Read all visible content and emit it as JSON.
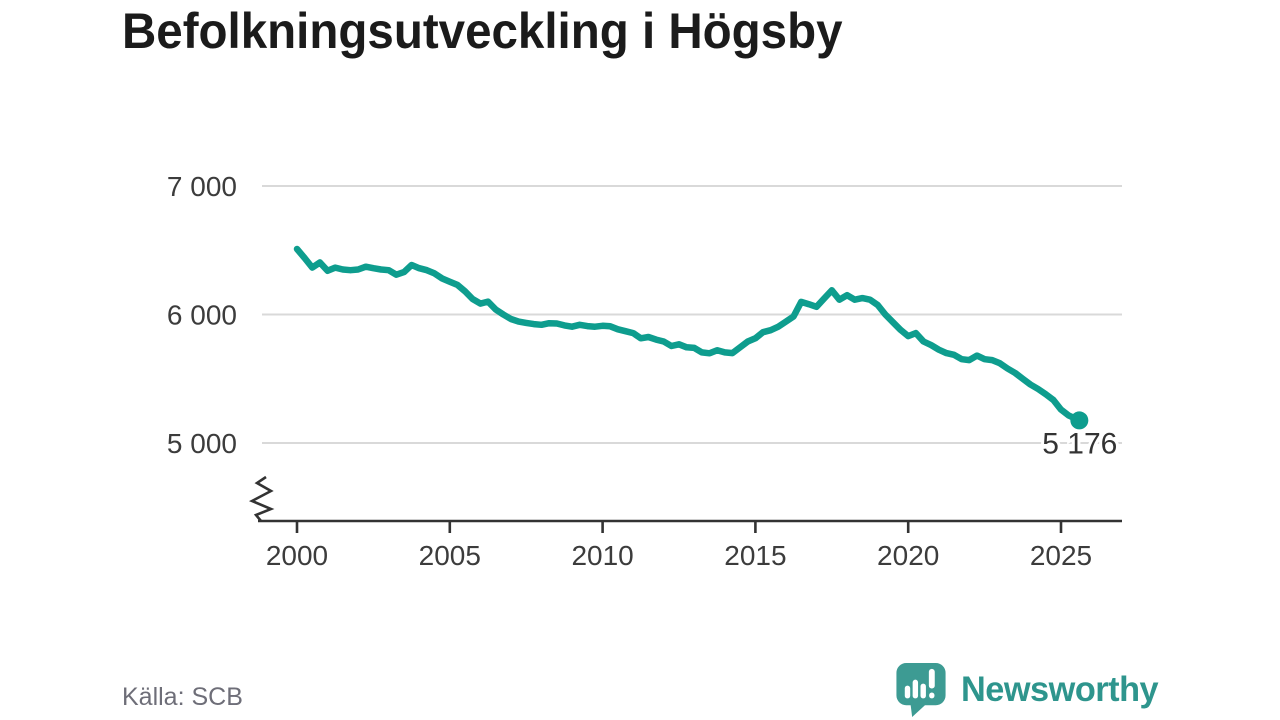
{
  "title": "Befolkningsutveckling i Högsby",
  "source": "Källa: SCB",
  "footer_logo": {
    "brand": "Newsworthy",
    "icon": "newsworthy-speech-bubble-chart-icon"
  },
  "colors": {
    "line": "#0e9d8e",
    "end_dot": "#0e9d8e",
    "grid": "#d9d9d9",
    "axis": "#333333",
    "tick_text": "#3c3c3c",
    "title_text": "#1b1b1b",
    "source_text": "#6e6e78",
    "brand_teal": "#2e958d",
    "icon_teal": "#3d9b93",
    "end_label_text": "#333333"
  },
  "chart_data": {
    "type": "line",
    "title": "Befolkningsutveckling i Högsby",
    "xlabel": "",
    "ylabel": "",
    "grid": "horizontal",
    "legend": "none",
    "axis_break": true,
    "xlim": [
      1998.9,
      2026.9
    ],
    "ylim_displayed": [
      5000,
      7000
    ],
    "x_ticks": [
      {
        "value": 2000,
        "label": "2000"
      },
      {
        "value": 2005,
        "label": "2005"
      },
      {
        "value": 2010,
        "label": "2010"
      },
      {
        "value": 2015,
        "label": "2015"
      },
      {
        "value": 2020,
        "label": "2020"
      },
      {
        "value": 2025,
        "label": "2025"
      }
    ],
    "y_ticks": [
      {
        "value": 7000,
        "label": "7 000"
      },
      {
        "value": 6000,
        "label": "6 000"
      },
      {
        "value": 5000,
        "label": "5 000"
      }
    ],
    "end_label": "5 176",
    "last_value": 5176,
    "series": [
      {
        "name": "Befolkning i Högsby (kvartal)",
        "points": [
          [
            2000.0,
            6510
          ],
          [
            2000.25,
            6440
          ],
          [
            2000.5,
            6365
          ],
          [
            2000.75,
            6405
          ],
          [
            2001.0,
            6340
          ],
          [
            2001.25,
            6365
          ],
          [
            2001.5,
            6350
          ],
          [
            2001.75,
            6345
          ],
          [
            2002.0,
            6350
          ],
          [
            2002.25,
            6372
          ],
          [
            2002.5,
            6360
          ],
          [
            2002.75,
            6350
          ],
          [
            2003.0,
            6345
          ],
          [
            2003.25,
            6310
          ],
          [
            2003.5,
            6330
          ],
          [
            2003.75,
            6385
          ],
          [
            2004.0,
            6360
          ],
          [
            2004.25,
            6345
          ],
          [
            2004.5,
            6320
          ],
          [
            2004.75,
            6280
          ],
          [
            2005.0,
            6255
          ],
          [
            2005.25,
            6230
          ],
          [
            2005.5,
            6180
          ],
          [
            2005.75,
            6120
          ],
          [
            2006.0,
            6085
          ],
          [
            2006.25,
            6100
          ],
          [
            2006.5,
            6040
          ],
          [
            2006.75,
            6000
          ],
          [
            2007.0,
            5965
          ],
          [
            2007.25,
            5945
          ],
          [
            2007.5,
            5935
          ],
          [
            2007.75,
            5925
          ],
          [
            2008.0,
            5920
          ],
          [
            2008.25,
            5932
          ],
          [
            2008.5,
            5930
          ],
          [
            2008.75,
            5915
          ],
          [
            2009.0,
            5905
          ],
          [
            2009.25,
            5920
          ],
          [
            2009.5,
            5910
          ],
          [
            2009.75,
            5905
          ],
          [
            2010.0,
            5912
          ],
          [
            2010.25,
            5908
          ],
          [
            2010.5,
            5885
          ],
          [
            2010.75,
            5870
          ],
          [
            2011.0,
            5855
          ],
          [
            2011.25,
            5815
          ],
          [
            2011.5,
            5825
          ],
          [
            2011.75,
            5805
          ],
          [
            2012.0,
            5790
          ],
          [
            2012.25,
            5755
          ],
          [
            2012.5,
            5768
          ],
          [
            2012.75,
            5745
          ],
          [
            2013.0,
            5740
          ],
          [
            2013.25,
            5705
          ],
          [
            2013.5,
            5698
          ],
          [
            2013.75,
            5722
          ],
          [
            2014.0,
            5705
          ],
          [
            2014.25,
            5700
          ],
          [
            2014.5,
            5745
          ],
          [
            2014.75,
            5790
          ],
          [
            2015.0,
            5815
          ],
          [
            2015.25,
            5862
          ],
          [
            2015.5,
            5878
          ],
          [
            2015.75,
            5905
          ],
          [
            2016.0,
            5945
          ],
          [
            2016.25,
            5985
          ],
          [
            2016.5,
            6098
          ],
          [
            2016.75,
            6080
          ],
          [
            2017.0,
            6060
          ],
          [
            2017.25,
            6125
          ],
          [
            2017.5,
            6188
          ],
          [
            2017.75,
            6115
          ],
          [
            2018.0,
            6150
          ],
          [
            2018.25,
            6115
          ],
          [
            2018.5,
            6128
          ],
          [
            2018.75,
            6115
          ],
          [
            2019.0,
            6075
          ],
          [
            2019.25,
            6000
          ],
          [
            2019.5,
            5940
          ],
          [
            2019.75,
            5880
          ],
          [
            2020.0,
            5832
          ],
          [
            2020.25,
            5855
          ],
          [
            2020.5,
            5790
          ],
          [
            2020.75,
            5762
          ],
          [
            2021.0,
            5726
          ],
          [
            2021.25,
            5700
          ],
          [
            2021.5,
            5686
          ],
          [
            2021.75,
            5652
          ],
          [
            2022.0,
            5645
          ],
          [
            2022.25,
            5680
          ],
          [
            2022.5,
            5652
          ],
          [
            2022.75,
            5645
          ],
          [
            2023.0,
            5620
          ],
          [
            2023.25,
            5580
          ],
          [
            2023.5,
            5545
          ],
          [
            2023.75,
            5500
          ],
          [
            2024.0,
            5455
          ],
          [
            2024.25,
            5420
          ],
          [
            2024.5,
            5380
          ],
          [
            2024.75,
            5335
          ],
          [
            2025.0,
            5260
          ],
          [
            2025.25,
            5215
          ],
          [
            2025.6,
            5176
          ]
        ]
      }
    ]
  }
}
